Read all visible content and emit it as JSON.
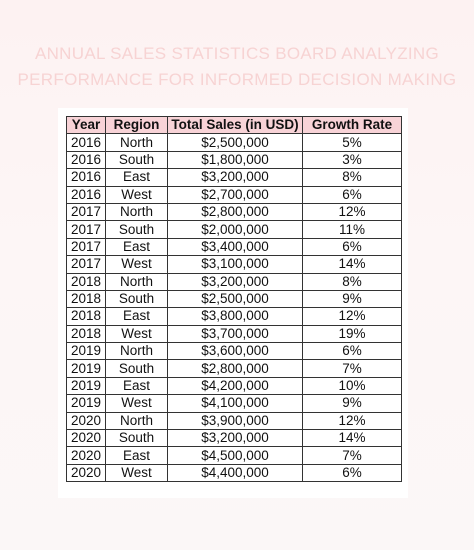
{
  "title": {
    "line1": "ANNUAL SALES STATISTICS BOARD ANALYZING",
    "line2": "PERFORMANCE FOR INFORMED DECISION MAKING"
  },
  "table": {
    "headers": [
      "Year",
      "Region",
      "Total Sales (in USD)",
      "Growth Rate"
    ],
    "rows": [
      [
        "2016",
        "North",
        "$2,500,000",
        "5%"
      ],
      [
        "2016",
        "South",
        "$1,800,000",
        "3%"
      ],
      [
        "2016",
        "East",
        "$3,200,000",
        "8%"
      ],
      [
        "2016",
        "West",
        "$2,700,000",
        "6%"
      ],
      [
        "2017",
        "North",
        "$2,800,000",
        "12%"
      ],
      [
        "2017",
        "South",
        "$2,000,000",
        "11%"
      ],
      [
        "2017",
        "East",
        "$3,400,000",
        "6%"
      ],
      [
        "2017",
        "West",
        "$3,100,000",
        "14%"
      ],
      [
        "2018",
        "North",
        "$3,200,000",
        "8%"
      ],
      [
        "2018",
        "South",
        "$2,500,000",
        "9%"
      ],
      [
        "2018",
        "East",
        "$3,800,000",
        "12%"
      ],
      [
        "2018",
        "West",
        "$3,700,000",
        "19%"
      ],
      [
        "2019",
        "North",
        "$3,600,000",
        "6%"
      ],
      [
        "2019",
        "South",
        "$2,800,000",
        "7%"
      ],
      [
        "2019",
        "East",
        "$4,200,000",
        "10%"
      ],
      [
        "2019",
        "West",
        "$4,100,000",
        "9%"
      ],
      [
        "2020",
        "North",
        "$3,900,000",
        "12%"
      ],
      [
        "2020",
        "South",
        "$3,200,000",
        "14%"
      ],
      [
        "2020",
        "East",
        "$4,500,000",
        "7%"
      ],
      [
        "2020",
        "West",
        "$4,400,000",
        "6%"
      ]
    ]
  },
  "colors": {
    "background": "#fdf6f6",
    "title_text": "#f7d3d3",
    "header_fill": "#f8d3d7",
    "border": "#333333"
  }
}
